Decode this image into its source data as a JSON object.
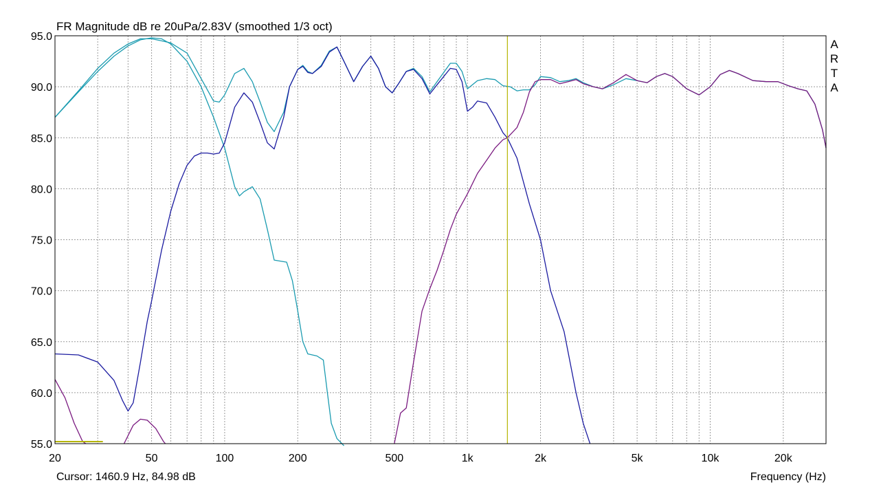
{
  "chart_data": {
    "type": "line",
    "title": "FR Magnitude dB re 20uPa/2.83V (smoothed 1/3 oct)",
    "xlabel": "Frequency (Hz)",
    "ylabel": "",
    "x_scale": "log",
    "xlim": [
      20,
      30000
    ],
    "ylim": [
      55,
      95
    ],
    "grid": true,
    "x_ticks": [
      20,
      50,
      100,
      200,
      500,
      1000,
      2000,
      5000,
      10000,
      20000
    ],
    "x_tick_labels": [
      "20",
      "50",
      "100",
      "200",
      "500",
      "1k",
      "2k",
      "5k",
      "10k",
      "20k"
    ],
    "y_ticks": [
      55,
      60,
      65,
      70,
      75,
      80,
      85,
      90,
      95
    ],
    "y_tick_labels": [
      "55.0",
      "60.0",
      "65.0",
      "70.0",
      "75.0",
      "80.0",
      "85.0",
      "90.0",
      "95.0"
    ],
    "cursor": {
      "frequency": 1460.9,
      "level": 84.98,
      "text": "Cursor: 1460.9 Hz, 84.98 dB",
      "color": "#b4b400"
    },
    "brand_letters": [
      "A",
      "R",
      "T",
      "A"
    ],
    "series": [
      {
        "color": "#1a9bb0",
        "points": [
          [
            20,
            87
          ],
          [
            25,
            89.5
          ],
          [
            30,
            91.5
          ],
          [
            35,
            93
          ],
          [
            40,
            94
          ],
          [
            45,
            94.6
          ],
          [
            50,
            94.8
          ],
          [
            55,
            94.7
          ],
          [
            60,
            94.2
          ],
          [
            70,
            92.5
          ],
          [
            80,
            90
          ],
          [
            90,
            87
          ],
          [
            100,
            84
          ],
          [
            110,
            80.2
          ],
          [
            115,
            79.3
          ],
          [
            120,
            79.7
          ],
          [
            130,
            80.2
          ],
          [
            140,
            79
          ],
          [
            150,
            76
          ],
          [
            160,
            73
          ],
          [
            180,
            72.8
          ],
          [
            190,
            71
          ],
          [
            200,
            68
          ],
          [
            210,
            65
          ],
          [
            220,
            63.8
          ],
          [
            240,
            63.6
          ],
          [
            255,
            63.2
          ],
          [
            265,
            60
          ],
          [
            275,
            57
          ],
          [
            290,
            55.5
          ],
          [
            310,
            54.8
          ]
        ]
      },
      {
        "color": "#1a9bb0",
        "points": [
          [
            20,
            87
          ],
          [
            25,
            89.6
          ],
          [
            30,
            91.8
          ],
          [
            35,
            93.3
          ],
          [
            40,
            94.2
          ],
          [
            45,
            94.7
          ],
          [
            50,
            94.7
          ],
          [
            55,
            94.5
          ],
          [
            60,
            94.3
          ],
          [
            70,
            93.3
          ],
          [
            80,
            90.8
          ],
          [
            90,
            88.6
          ],
          [
            95,
            88.5
          ],
          [
            100,
            89.2
          ],
          [
            110,
            91.3
          ],
          [
            120,
            91.8
          ],
          [
            130,
            90.5
          ],
          [
            140,
            88.5
          ],
          [
            150,
            86.5
          ],
          [
            160,
            85.6
          ],
          [
            175,
            87.5
          ],
          [
            185,
            90
          ],
          [
            200,
            91.7
          ],
          [
            210,
            92.1
          ],
          [
            220,
            91.5
          ],
          [
            230,
            91.3
          ],
          [
            250,
            92.1
          ],
          [
            270,
            93.5
          ],
          [
            290,
            93.9
          ],
          [
            310,
            92.5
          ],
          [
            340,
            90.5
          ],
          [
            370,
            92
          ],
          [
            400,
            93
          ],
          [
            430,
            91.8
          ],
          [
            460,
            90
          ],
          [
            490,
            89.4
          ],
          [
            520,
            90.3
          ],
          [
            560,
            91.5
          ],
          [
            600,
            91.8
          ],
          [
            650,
            91
          ],
          [
            700,
            89.5
          ],
          [
            750,
            90.5
          ],
          [
            850,
            92.3
          ],
          [
            900,
            92.3
          ],
          [
            950,
            91.5
          ],
          [
            1000,
            89.8
          ],
          [
            1100,
            90.6
          ],
          [
            1200,
            90.8
          ],
          [
            1300,
            90.7
          ],
          [
            1400,
            90.1
          ],
          [
            1500,
            90
          ],
          [
            1600,
            89.6
          ],
          [
            1700,
            89.7
          ],
          [
            1800,
            89.7
          ],
          [
            1900,
            90.2
          ],
          [
            2000,
            91
          ],
          [
            2200,
            90.9
          ],
          [
            2400,
            90.5
          ],
          [
            2600,
            90.6
          ],
          [
            2800,
            90.8
          ],
          [
            3000,
            90.4
          ],
          [
            3300,
            90
          ],
          [
            3600,
            89.8
          ],
          [
            4000,
            90.2
          ],
          [
            4500,
            90.8
          ],
          [
            5000,
            90.6
          ],
          [
            5500,
            90.4
          ],
          [
            6000,
            91
          ],
          [
            6500,
            91.3
          ],
          [
            7000,
            91
          ],
          [
            8000,
            89.8
          ],
          [
            9000,
            89.2
          ],
          [
            10000,
            90
          ],
          [
            11000,
            91.2
          ],
          [
            12000,
            91.6
          ],
          [
            13000,
            91.3
          ],
          [
            15000,
            90.6
          ],
          [
            17000,
            90.5
          ],
          [
            19000,
            90.5
          ],
          [
            21000,
            90.1
          ],
          [
            23000,
            89.8
          ],
          [
            25000,
            89.6
          ],
          [
            27000,
            88.3
          ],
          [
            29000,
            85.8
          ],
          [
            30000,
            84
          ]
        ]
      },
      {
        "color": "#1b1ba0",
        "points": [
          [
            20,
            63.8
          ],
          [
            25,
            63.7
          ],
          [
            30,
            63
          ],
          [
            35,
            61.2
          ],
          [
            38,
            59.2
          ],
          [
            40,
            58.2
          ],
          [
            42,
            59
          ],
          [
            45,
            63
          ],
          [
            48,
            67
          ],
          [
            50,
            69
          ],
          [
            55,
            74
          ],
          [
            60,
            77.8
          ],
          [
            65,
            80.5
          ],
          [
            70,
            82.3
          ],
          [
            75,
            83.2
          ],
          [
            80,
            83.5
          ],
          [
            85,
            83.5
          ],
          [
            90,
            83.4
          ],
          [
            95,
            83.5
          ],
          [
            100,
            84.5
          ],
          [
            110,
            88
          ],
          [
            120,
            89.4
          ],
          [
            130,
            88.5
          ],
          [
            140,
            86.5
          ],
          [
            150,
            84.5
          ],
          [
            160,
            83.9
          ],
          [
            175,
            87
          ],
          [
            185,
            90
          ],
          [
            200,
            91.7
          ],
          [
            210,
            92
          ],
          [
            220,
            91.4
          ],
          [
            230,
            91.3
          ],
          [
            250,
            92
          ],
          [
            270,
            93.4
          ],
          [
            290,
            93.9
          ],
          [
            310,
            92.5
          ],
          [
            340,
            90.5
          ],
          [
            370,
            92
          ],
          [
            400,
            93
          ],
          [
            430,
            91.8
          ],
          [
            460,
            90
          ],
          [
            490,
            89.4
          ],
          [
            520,
            90.3
          ],
          [
            560,
            91.5
          ],
          [
            600,
            91.7
          ],
          [
            650,
            90.8
          ],
          [
            700,
            89.3
          ],
          [
            750,
            90.2
          ],
          [
            850,
            91.8
          ],
          [
            900,
            91.7
          ],
          [
            950,
            90.5
          ],
          [
            1000,
            87.6
          ],
          [
            1050,
            88
          ],
          [
            1100,
            88.6
          ],
          [
            1200,
            88.4
          ],
          [
            1300,
            87
          ],
          [
            1400,
            85.5
          ],
          [
            1460,
            85
          ],
          [
            1600,
            83
          ],
          [
            1800,
            78.5
          ],
          [
            2000,
            75
          ],
          [
            2200,
            70
          ],
          [
            2500,
            66
          ],
          [
            2800,
            60
          ],
          [
            3000,
            57
          ],
          [
            3200,
            55
          ]
        ]
      },
      {
        "color": "#7a1a80",
        "points": [
          [
            20,
            61.3
          ],
          [
            22,
            59.5
          ],
          [
            24,
            57
          ],
          [
            26,
            55.2
          ],
          [
            26.8,
            55
          ]
        ]
      },
      {
        "color": "#7a1a80",
        "points": [
          [
            38.5,
            55
          ],
          [
            42,
            56.8
          ],
          [
            45,
            57.4
          ],
          [
            48,
            57.3
          ],
          [
            52,
            56.5
          ],
          [
            56,
            55.2
          ],
          [
            57,
            55
          ]
        ]
      },
      {
        "color": "#7a1a80",
        "points": [
          [
            500,
            55
          ],
          [
            530,
            58
          ],
          [
            560,
            58.5
          ],
          [
            600,
            63
          ],
          [
            650,
            68
          ],
          [
            700,
            70.2
          ],
          [
            750,
            72
          ],
          [
            800,
            74
          ],
          [
            850,
            76
          ],
          [
            900,
            77.5
          ],
          [
            1000,
            79.5
          ],
          [
            1100,
            81.5
          ],
          [
            1200,
            82.8
          ],
          [
            1300,
            84
          ],
          [
            1400,
            84.8
          ],
          [
            1460,
            85
          ],
          [
            1600,
            86
          ],
          [
            1700,
            87.5
          ],
          [
            1800,
            89.5
          ],
          [
            1900,
            90.5
          ],
          [
            2000,
            90.7
          ],
          [
            2200,
            90.7
          ],
          [
            2400,
            90.3
          ],
          [
            2600,
            90.5
          ],
          [
            2800,
            90.7
          ],
          [
            3000,
            90.3
          ],
          [
            3300,
            90
          ],
          [
            3600,
            89.8
          ],
          [
            4000,
            90.4
          ],
          [
            4500,
            91.2
          ],
          [
            5000,
            90.6
          ],
          [
            5500,
            90.4
          ],
          [
            6000,
            91
          ],
          [
            6500,
            91.3
          ],
          [
            7000,
            91
          ],
          [
            8000,
            89.8
          ],
          [
            9000,
            89.2
          ],
          [
            10000,
            90
          ],
          [
            11000,
            91.2
          ],
          [
            12000,
            91.6
          ],
          [
            13000,
            91.3
          ],
          [
            15000,
            90.6
          ],
          [
            17000,
            90.5
          ],
          [
            19000,
            90.5
          ],
          [
            21000,
            90.1
          ],
          [
            23000,
            89.8
          ],
          [
            25000,
            89.6
          ],
          [
            27000,
            88.3
          ],
          [
            29000,
            85.8
          ],
          [
            30000,
            84
          ]
        ]
      }
    ]
  },
  "reference_marker": {
    "x": [
      20,
      31.5
    ],
    "y": 55.2,
    "color": "#b4b400"
  }
}
